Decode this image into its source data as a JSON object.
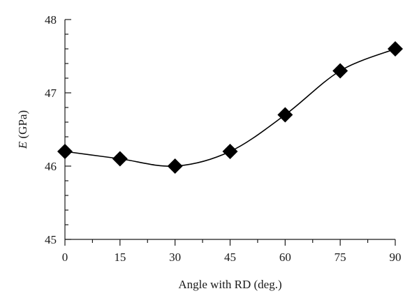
{
  "chart_data": {
    "type": "line",
    "title": "",
    "xlabel": "Angle with RD (deg.)",
    "ylabel_italic": "E",
    "ylabel_rest": " (GPa)",
    "xlim": [
      0,
      90
    ],
    "ylim": [
      45,
      48
    ],
    "x_ticks": [
      0,
      15,
      30,
      45,
      60,
      75,
      90
    ],
    "x_tick_labels": [
      "0",
      "15",
      "30",
      "45",
      "60",
      "75",
      "90"
    ],
    "y_major_ticks": [
      45,
      46,
      47,
      48
    ],
    "y_tick_labels": [
      "45",
      "46",
      "47",
      "48"
    ],
    "y_minor_ticks": [
      45.2,
      45.4,
      45.6,
      45.8,
      46.2,
      46.4,
      46.6,
      46.8,
      47.2,
      47.4,
      47.6,
      47.8
    ],
    "x_minor_ticks": [
      7.5,
      22.5,
      37.5,
      52.5,
      67.5,
      82.5
    ],
    "grid": false,
    "marker": "diamond",
    "marker_color": "#000000",
    "line_color": "#000000",
    "series": [
      {
        "x": [
          0,
          15,
          30,
          45,
          60,
          75,
          90
        ],
        "values": [
          46.2,
          46.1,
          46.0,
          46.2,
          46.7,
          47.3,
          47.6
        ]
      }
    ]
  }
}
